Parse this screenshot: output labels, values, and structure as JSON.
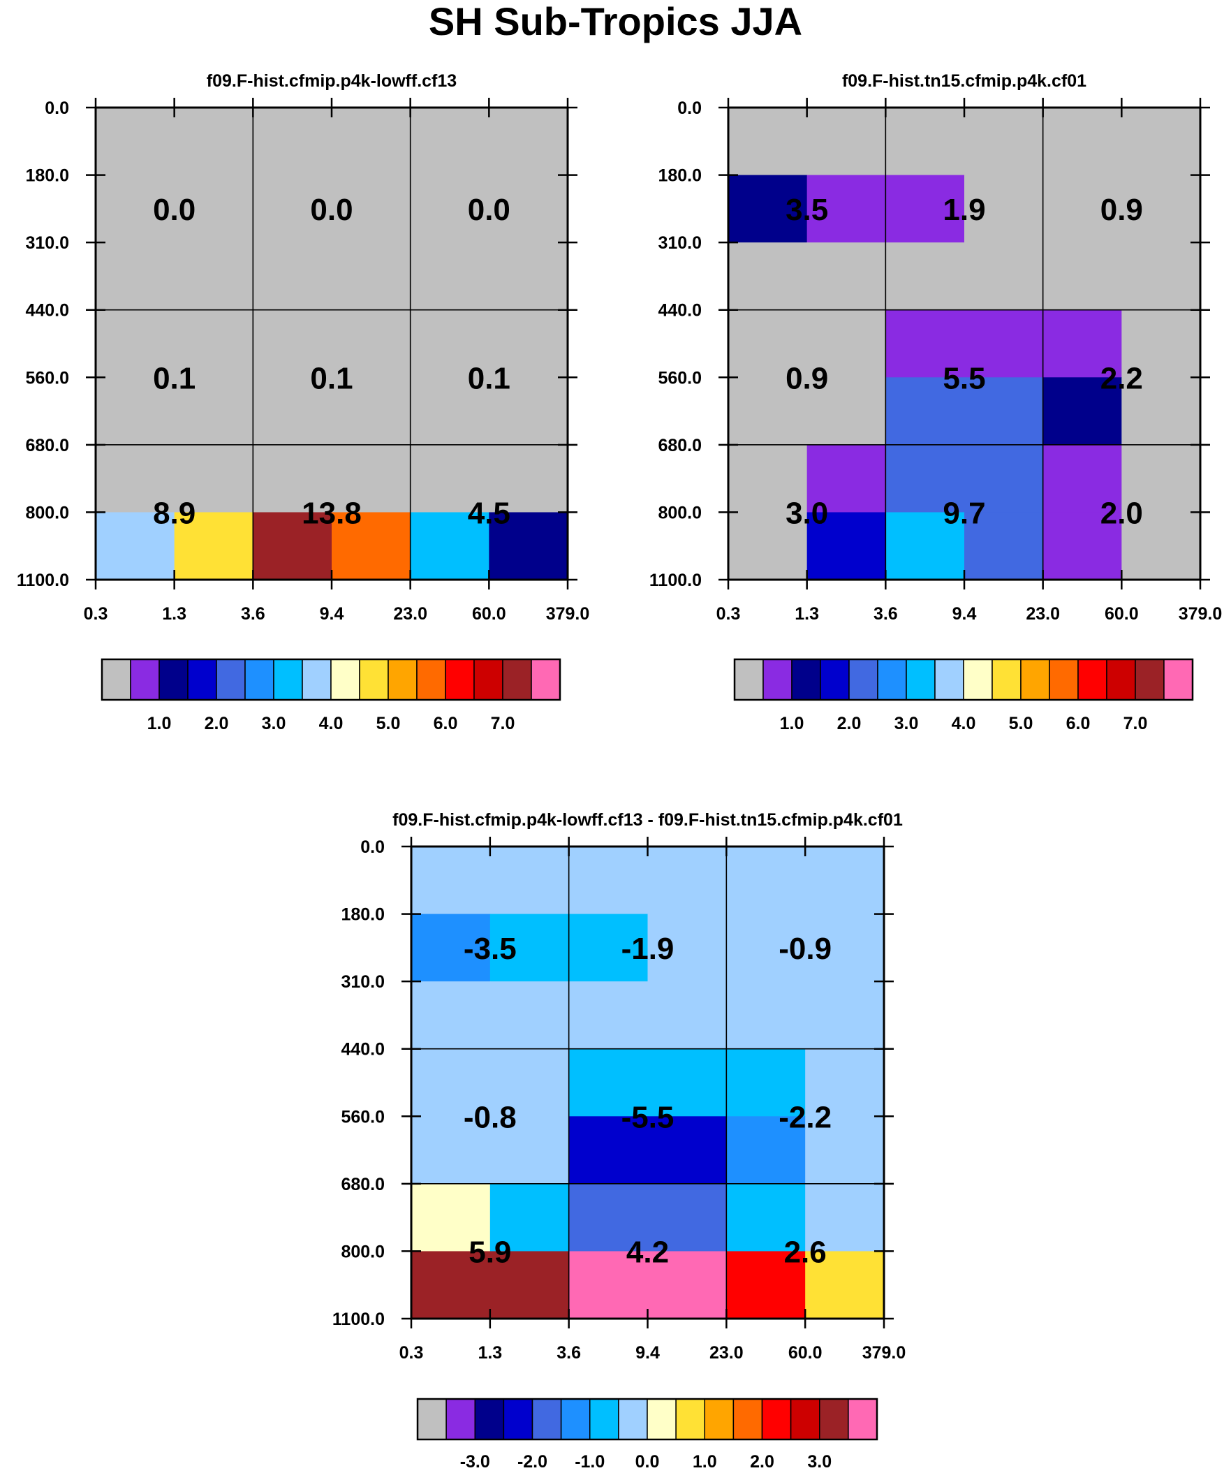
{
  "title": "SH Sub-Tropics JJA",
  "colors": {
    "levels": [
      "#c0c0c0",
      "#8a2be2",
      "#00008b",
      "#0000cd",
      "#4169e1",
      "#1e90ff",
      "#00bfff",
      "#a0d0ff",
      "#ffffc8",
      "#ffe135",
      "#ffa500",
      "#ff6a00",
      "#ff0000",
      "#cd0000",
      "#9b2226",
      "#ff69b4"
    ]
  },
  "chart_data": [
    {
      "type": "heatmap",
      "title": "f09.F-hist.cfmip.p4k-lowff.cf13",
      "x_ticks": [
        "0.3",
        "1.3",
        "3.6",
        "9.4",
        "23.0",
        "60.0",
        "379.0"
      ],
      "y_ticks": [
        "0.0",
        "180.0",
        "310.0",
        "440.0",
        "560.0",
        "680.0",
        "800.0",
        "1100.0"
      ],
      "cell_labels": [
        [
          "0.0",
          "0.0",
          "0.0"
        ],
        [
          "0.1",
          "0.1",
          "0.1"
        ],
        [
          "8.9",
          "13.8",
          "4.5"
        ]
      ],
      "color_index_grid": [
        [
          0,
          0,
          0,
          0,
          0,
          0
        ],
        [
          0,
          0,
          0,
          0,
          0,
          0
        ],
        [
          0,
          0,
          0,
          0,
          0,
          0
        ],
        [
          0,
          0,
          0,
          0,
          0,
          0
        ],
        [
          0,
          0,
          0,
          0,
          0,
          0
        ],
        [
          0,
          0,
          0,
          0,
          0,
          0
        ],
        [
          7,
          9,
          14,
          11,
          6,
          2
        ]
      ],
      "colorbar_labels": [
        "1.0",
        "2.0",
        "3.0",
        "4.0",
        "5.0",
        "6.0",
        "7.0"
      ]
    },
    {
      "type": "heatmap",
      "title": "f09.F-hist.tn15.cfmip.p4k.cf01",
      "x_ticks": [
        "0.3",
        "1.3",
        "3.6",
        "9.4",
        "23.0",
        "60.0",
        "379.0"
      ],
      "y_ticks": [
        "0.0",
        "180.0",
        "310.0",
        "440.0",
        "560.0",
        "680.0",
        "800.0",
        "1100.0"
      ],
      "cell_labels": [
        [
          "3.5",
          "1.9",
          "0.9"
        ],
        [
          "0.9",
          "5.5",
          "2.2"
        ],
        [
          "3.0",
          "9.7",
          "2.0"
        ]
      ],
      "color_index_grid": [
        [
          0,
          0,
          0,
          0,
          0,
          0
        ],
        [
          2,
          1,
          1,
          0,
          0,
          0
        ],
        [
          0,
          0,
          0,
          0,
          0,
          0
        ],
        [
          0,
          0,
          1,
          1,
          1,
          0
        ],
        [
          0,
          0,
          4,
          4,
          2,
          0
        ],
        [
          0,
          1,
          4,
          4,
          1,
          0
        ],
        [
          0,
          3,
          6,
          4,
          1,
          0
        ]
      ],
      "colorbar_labels": [
        "1.0",
        "2.0",
        "3.0",
        "4.0",
        "5.0",
        "6.0",
        "7.0"
      ]
    },
    {
      "type": "heatmap",
      "title": "f09.F-hist.cfmip.p4k-lowff.cf13 - f09.F-hist.tn15.cfmip.p4k.cf01",
      "x_ticks": [
        "0.3",
        "1.3",
        "3.6",
        "9.4",
        "23.0",
        "60.0",
        "379.0"
      ],
      "y_ticks": [
        "0.0",
        "180.0",
        "310.0",
        "440.0",
        "560.0",
        "680.0",
        "800.0",
        "1100.0"
      ],
      "cell_labels": [
        [
          "-3.5",
          "-1.9",
          "-0.9"
        ],
        [
          "-0.8",
          "-5.5",
          "-2.2"
        ],
        [
          "5.9",
          "4.2",
          "2.6"
        ]
      ],
      "color_index_grid": [
        [
          7,
          7,
          7,
          7,
          7,
          7
        ],
        [
          5,
          6,
          6,
          7,
          7,
          7
        ],
        [
          7,
          7,
          7,
          7,
          7,
          7
        ],
        [
          7,
          7,
          6,
          6,
          6,
          7
        ],
        [
          7,
          7,
          3,
          3,
          5,
          7
        ],
        [
          8,
          6,
          4,
          4,
          6,
          7
        ],
        [
          14,
          14,
          15,
          15,
          12,
          9
        ]
      ],
      "colorbar_labels": [
        "-3.0",
        "-2.0",
        "-1.0",
        "0.0",
        "1.0",
        "2.0",
        "3.0"
      ]
    }
  ]
}
